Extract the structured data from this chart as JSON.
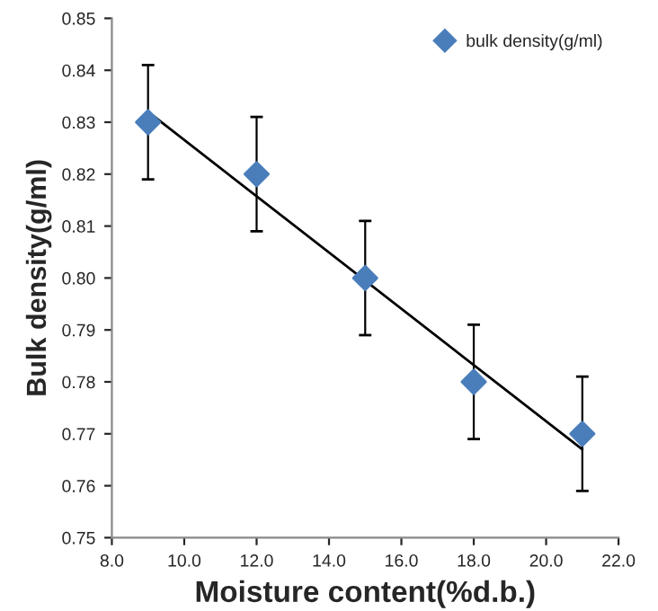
{
  "chart_data": {
    "type": "scatter",
    "xlabel": "Moisture content(%d.b.)",
    "ylabel": "Bulk density(g/ml)",
    "xlim": [
      8.0,
      22.0
    ],
    "xticks": [
      {
        "value": 8,
        "label": "8.0"
      },
      {
        "value": 10,
        "label": "10.0"
      },
      {
        "value": 12,
        "label": "12.0"
      },
      {
        "value": 14,
        "label": "14.0"
      },
      {
        "value": 16,
        "label": "16.0"
      },
      {
        "value": 18,
        "label": "18.0"
      },
      {
        "value": 20,
        "label": "20.0"
      },
      {
        "value": 22,
        "label": "22.0"
      }
    ],
    "ylim": [
      0.75,
      0.85
    ],
    "yticks": [
      {
        "value": 0.75,
        "label": "0.75"
      },
      {
        "value": 0.76,
        "label": "0.76"
      },
      {
        "value": 0.77,
        "label": "0.77"
      },
      {
        "value": 0.78,
        "label": "0.78"
      },
      {
        "value": 0.79,
        "label": "0.79"
      },
      {
        "value": 0.8,
        "label": "0.80"
      },
      {
        "value": 0.81,
        "label": "0.81"
      },
      {
        "value": 0.82,
        "label": "0.82"
      },
      {
        "value": 0.83,
        "label": "0.83"
      },
      {
        "value": 0.84,
        "label": "0.84"
      },
      {
        "value": 0.85,
        "label": "0.85"
      }
    ],
    "grid": false,
    "legend": "top right",
    "series": [
      {
        "name": "bulk density(g/ml)",
        "marker": "diamond",
        "color": "#4a7ebb",
        "x": [
          9,
          12,
          15,
          18,
          21
        ],
        "values": [
          0.83,
          0.82,
          0.8,
          0.78,
          0.77
        ],
        "errors": [
          0.011,
          0.011,
          0.011,
          0.011,
          0.011
        ]
      },
      {
        "type": "line",
        "color": "#000000",
        "x": [
          9,
          21
        ],
        "values": [
          0.832,
          0.767
        ]
      }
    ]
  }
}
